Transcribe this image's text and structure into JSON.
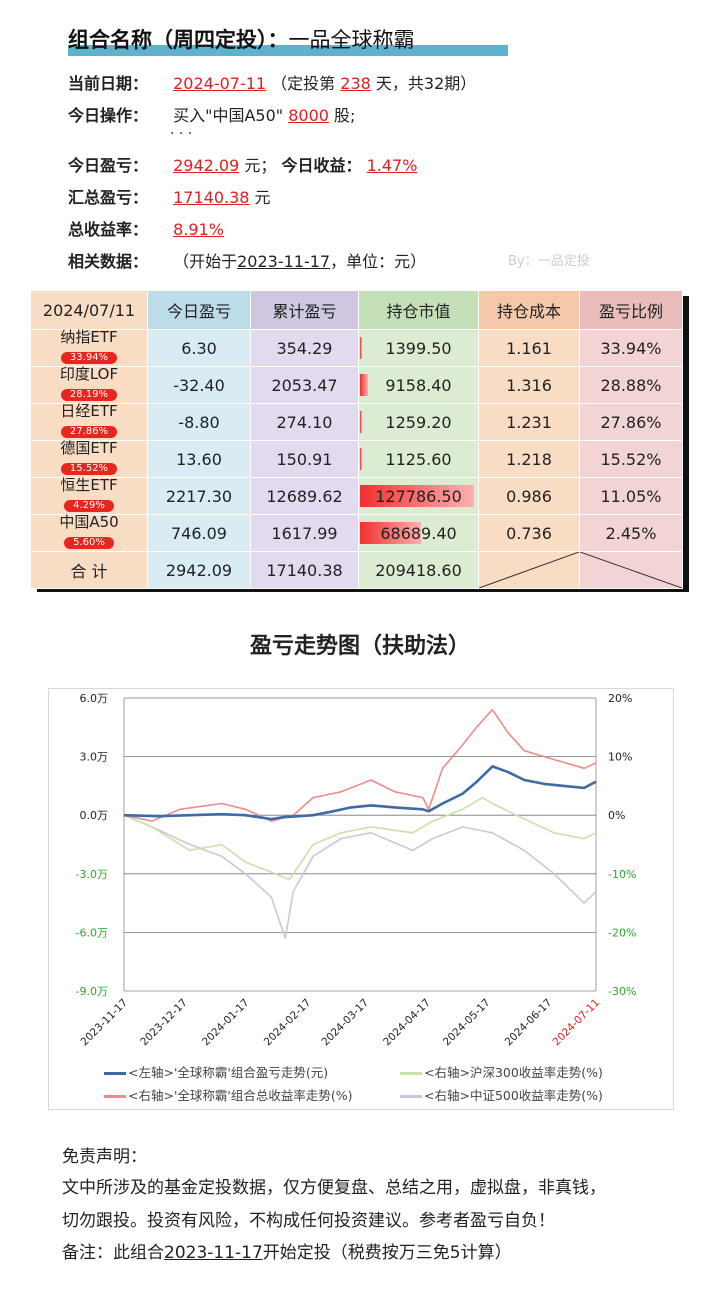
{
  "header": {
    "title_prefix": "组合名称（周四定投）：",
    "title_name": "一品全球称霸"
  },
  "info": {
    "date_label": "当前日期：",
    "date": "2024-07-11",
    "date_pre": "（定投第",
    "day_count": "238",
    "date_post": "天，共32期）",
    "op_label": "今日操作：",
    "op_pre": "买入\"中国A50\"",
    "op_qty": "8000",
    "op_post": "股;",
    "op_more": ". . .",
    "pnl_label": "今日盈亏：",
    "pnl_today": "2942.09",
    "pnl_unit": "元；",
    "ret_label": "今日收益：",
    "ret_today": "1.47%",
    "total_label": "汇总盈亏：",
    "total_pnl": "17140.38",
    "total_unit": "元",
    "rate_label": "总收益率：",
    "total_rate": "8.91%",
    "rel_label": "相关数据：",
    "rel_pre": "（开始于",
    "rel_date": "2023-11-17",
    "rel_post": "，单位：元）",
    "by": "By：一品定投"
  },
  "table": {
    "headers": [
      "2024/07/11",
      "今日盈亏",
      "累计盈亏",
      "持仓市值",
      "持仓成本",
      "盈亏比例"
    ],
    "rows": [
      {
        "name": "纳指ETF",
        "weight": "33.94%",
        "today": "6.30",
        "cum": "354.29",
        "value": "1399.50",
        "value_frac": 0.011,
        "cost": "1.161",
        "ratio": "33.94%"
      },
      {
        "name": "印度LOF",
        "weight": "28.19%",
        "today": "-32.40",
        "cum": "2053.47",
        "value": "9158.40",
        "value_frac": 0.072,
        "cost": "1.316",
        "ratio": "28.88%"
      },
      {
        "name": "日经ETF",
        "weight": "27.86%",
        "today": "-8.80",
        "cum": "274.10",
        "value": "1259.20",
        "value_frac": 0.01,
        "cost": "1.231",
        "ratio": "27.86%"
      },
      {
        "name": "德国ETF",
        "weight": "15.52%",
        "today": "13.60",
        "cum": "150.91",
        "value": "1125.60",
        "value_frac": 0.009,
        "cost": "1.218",
        "ratio": "15.52%"
      },
      {
        "name": "恒生ETF",
        "weight": "4.29%",
        "today": "2217.30",
        "cum": "12689.62",
        "value": "127786.50",
        "value_frac": 1.0,
        "cost": "0.986",
        "ratio": "11.05%"
      },
      {
        "name": "中国A50",
        "weight": "5.60%",
        "today": "746.09",
        "cum": "1617.99",
        "value": "68689.40",
        "value_frac": 0.537,
        "cost": "0.736",
        "ratio": "2.45%"
      }
    ],
    "total": {
      "label": "合 计",
      "today": "2942.09",
      "cum": "17140.38",
      "value": "209418.60"
    }
  },
  "chart_data": {
    "type": "line",
    "title": "盈亏走势图（扶助法）",
    "x_ticks": [
      "2023-11-17",
      "2023-12-17",
      "2024-01-17",
      "2024-02-17",
      "2024-03-17",
      "2024-04-17",
      "2024-05-17",
      "2024-06-17",
      "2024-07-11"
    ],
    "y_left": {
      "ticks": [
        "6.0万",
        "3.0万",
        "0.0万",
        "-3.0万",
        "-6.0万",
        "-9.0万"
      ],
      "range": [
        -90000,
        60000
      ]
    },
    "y_right": {
      "ticks": [
        "20%",
        "10%",
        "0%",
        "-10%",
        "-20%",
        "-30%"
      ],
      "range": [
        -30,
        20
      ]
    },
    "grid": "horizontal",
    "legend": "bottom",
    "series": [
      {
        "name": "<左轴>'全球称霸'组合盈亏走势(元)",
        "axis": "left",
        "color": "#3f6aa8",
        "points": [
          [
            "2023-11-17",
            0
          ],
          [
            "2023-12-05",
            -500
          ],
          [
            "2023-12-20",
            0
          ],
          [
            "2024-01-05",
            500
          ],
          [
            "2024-01-17",
            0
          ],
          [
            "2024-01-30",
            -2000
          ],
          [
            "2024-02-05",
            -1000
          ],
          [
            "2024-02-20",
            0
          ],
          [
            "2024-03-01",
            2000
          ],
          [
            "2024-03-10",
            4000
          ],
          [
            "2024-03-20",
            5000
          ],
          [
            "2024-04-01",
            4000
          ],
          [
            "2024-04-15",
            3000
          ],
          [
            "2024-04-18",
            2000
          ],
          [
            "2024-04-25",
            6000
          ],
          [
            "2024-05-05",
            11000
          ],
          [
            "2024-05-12",
            17000
          ],
          [
            "2024-05-20",
            25000
          ],
          [
            "2024-05-28",
            22000
          ],
          [
            "2024-06-05",
            18000
          ],
          [
            "2024-06-15",
            16000
          ],
          [
            "2024-06-25",
            15000
          ],
          [
            "2024-07-05",
            14000
          ],
          [
            "2024-07-11",
            17140
          ]
        ]
      },
      {
        "name": "<右轴>沪深300收益率走势(%)",
        "axis": "right",
        "color": "#c8e2a8",
        "points": [
          [
            "2023-11-17",
            0
          ],
          [
            "2023-12-01",
            -2
          ],
          [
            "2023-12-20",
            -6
          ],
          [
            "2024-01-05",
            -5
          ],
          [
            "2024-01-17",
            -8
          ],
          [
            "2024-02-01",
            -10
          ],
          [
            "2024-02-08",
            -11
          ],
          [
            "2024-02-20",
            -5
          ],
          [
            "2024-03-05",
            -3
          ],
          [
            "2024-03-20",
            -2
          ],
          [
            "2024-04-10",
            -3
          ],
          [
            "2024-04-20",
            -1
          ],
          [
            "2024-05-05",
            1
          ],
          [
            "2024-05-15",
            3
          ],
          [
            "2024-05-20",
            2
          ],
          [
            "2024-06-01",
            0
          ],
          [
            "2024-06-20",
            -3
          ],
          [
            "2024-07-05",
            -4
          ],
          [
            "2024-07-11",
            -3
          ]
        ]
      },
      {
        "name": "<右轴>'全球称霸'组合总收益率走势(%)",
        "axis": "right",
        "color": "#f08a8a",
        "points": [
          [
            "2023-11-17",
            0
          ],
          [
            "2023-12-01",
            -1
          ],
          [
            "2023-12-15",
            1
          ],
          [
            "2024-01-05",
            2
          ],
          [
            "2024-01-17",
            1
          ],
          [
            "2024-01-30",
            -1
          ],
          [
            "2024-02-10",
            0
          ],
          [
            "2024-02-20",
            3
          ],
          [
            "2024-03-05",
            4
          ],
          [
            "2024-03-20",
            6
          ],
          [
            "2024-04-01",
            4
          ],
          [
            "2024-04-15",
            3
          ],
          [
            "2024-04-18",
            1
          ],
          [
            "2024-04-25",
            8
          ],
          [
            "2024-05-05",
            12
          ],
          [
            "2024-05-12",
            15
          ],
          [
            "2024-05-20",
            18
          ],
          [
            "2024-05-28",
            14
          ],
          [
            "2024-06-05",
            11
          ],
          [
            "2024-06-15",
            10
          ],
          [
            "2024-06-25",
            9
          ],
          [
            "2024-07-05",
            8
          ],
          [
            "2024-07-11",
            8.91
          ]
        ]
      },
      {
        "name": "<右轴>中证500收益率走势(%)",
        "axis": "right",
        "color": "#ccc6dc",
        "points": [
          [
            "2023-11-17",
            0
          ],
          [
            "2023-12-01",
            -2
          ],
          [
            "2023-12-20",
            -5
          ],
          [
            "2024-01-05",
            -7
          ],
          [
            "2024-01-17",
            -10
          ],
          [
            "2024-01-30",
            -14
          ],
          [
            "2024-02-06",
            -21
          ],
          [
            "2024-02-10",
            -13
          ],
          [
            "2024-02-20",
            -7
          ],
          [
            "2024-03-05",
            -4
          ],
          [
            "2024-03-20",
            -3
          ],
          [
            "2024-04-10",
            -6
          ],
          [
            "2024-04-20",
            -4
          ],
          [
            "2024-05-05",
            -2
          ],
          [
            "2024-05-20",
            -3
          ],
          [
            "2024-06-05",
            -6
          ],
          [
            "2024-06-20",
            -10
          ],
          [
            "2024-07-05",
            -15
          ],
          [
            "2024-07-11",
            -13
          ]
        ]
      }
    ]
  },
  "disclaimer": {
    "title": "免责声明：",
    "line1": "文中所涉及的基金定投数据，仅方便复盘、总结之用，虚拟盘，非真钱，",
    "line2": "切勿跟投。投资有风险，不构成任何投资建议。参考者盈亏自负！",
    "note_pre": "备注：此组合",
    "note_date": "2023-11-17",
    "note_post": "开始定投（税费按万三免5计算）"
  }
}
